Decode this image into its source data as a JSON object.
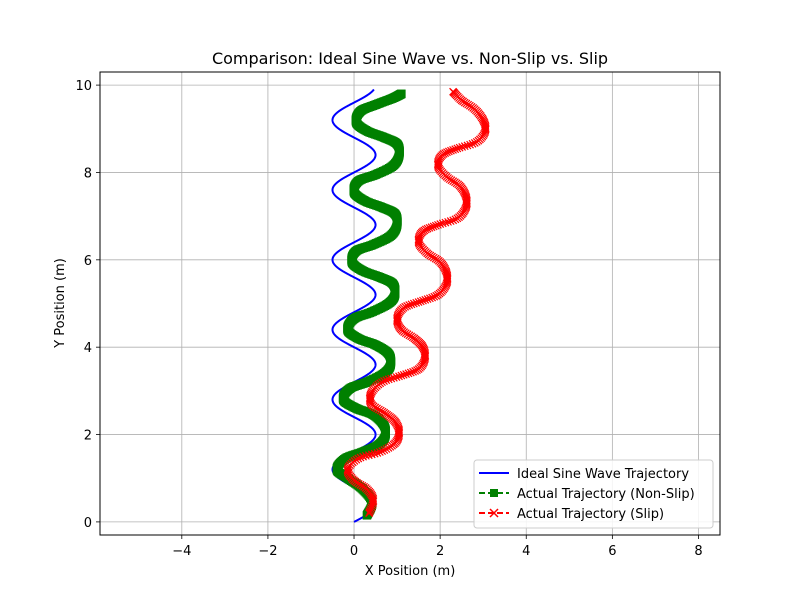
{
  "chart_data": {
    "type": "line",
    "title": "Comparison: Ideal Sine Wave vs. Non-Slip vs. Slip",
    "xlabel": "X Position (m)",
    "ylabel": "Y Position (m)",
    "xlim": [
      -5.9,
      8.5
    ],
    "ylim": [
      -0.3,
      10.3
    ],
    "xticks": [
      -4,
      -2,
      0,
      2,
      4,
      6,
      8
    ],
    "yticks": [
      0,
      2,
      4,
      6,
      8,
      10
    ],
    "grid": true,
    "legend_position": "lower-right",
    "series": [
      {
        "name": "Ideal Sine Wave Trajectory",
        "color": "#0000ff",
        "style": "solid",
        "marker": "none",
        "curve": {
          "center_x": 0.0,
          "amplitude": 0.5,
          "period_y": 1.6,
          "y_start": 0.0,
          "y_end": 9.9
        }
      },
      {
        "name": "Actual Trajectory (Non-Slip)",
        "color": "#008000",
        "style": "dashed",
        "marker": "square",
        "points": [
          [
            0.3,
            0.15
          ],
          [
            0.42,
            0.45
          ],
          [
            0.2,
            0.75
          ],
          [
            -0.15,
            1.0
          ],
          [
            -0.4,
            1.2
          ],
          [
            -0.2,
            1.45
          ],
          [
            0.2,
            1.6
          ],
          [
            0.55,
            1.75
          ],
          [
            0.72,
            1.95
          ],
          [
            0.7,
            2.2
          ],
          [
            0.45,
            2.45
          ],
          [
            0.05,
            2.6
          ],
          [
            -0.25,
            2.8
          ],
          [
            -0.1,
            3.05
          ],
          [
            0.3,
            3.2
          ],
          [
            0.7,
            3.4
          ],
          [
            0.85,
            3.6
          ],
          [
            0.8,
            3.85
          ],
          [
            0.5,
            4.05
          ],
          [
            0.1,
            4.2
          ],
          [
            -0.15,
            4.4
          ],
          [
            0.0,
            4.65
          ],
          [
            0.4,
            4.8
          ],
          [
            0.8,
            5.0
          ],
          [
            0.95,
            5.2
          ],
          [
            0.9,
            5.45
          ],
          [
            0.6,
            5.6
          ],
          [
            0.2,
            5.75
          ],
          [
            -0.05,
            5.95
          ],
          [
            0.05,
            6.2
          ],
          [
            0.45,
            6.35
          ],
          [
            0.85,
            6.55
          ],
          [
            1.0,
            6.8
          ],
          [
            0.95,
            7.05
          ],
          [
            0.65,
            7.2
          ],
          [
            0.25,
            7.35
          ],
          [
            0.0,
            7.55
          ],
          [
            0.1,
            7.8
          ],
          [
            0.5,
            7.95
          ],
          [
            0.9,
            8.15
          ],
          [
            1.05,
            8.4
          ],
          [
            1.0,
            8.65
          ],
          [
            0.7,
            8.8
          ],
          [
            0.3,
            8.95
          ],
          [
            0.05,
            9.15
          ],
          [
            0.15,
            9.4
          ],
          [
            0.5,
            9.55
          ],
          [
            0.9,
            9.7
          ],
          [
            1.1,
            9.8
          ]
        ]
      },
      {
        "name": "Actual Trajectory (Slip)",
        "color": "#ff0000",
        "style": "dashed",
        "marker": "x",
        "points": [
          [
            0.35,
            0.2
          ],
          [
            0.45,
            0.5
          ],
          [
            0.3,
            0.75
          ],
          [
            0.0,
            0.95
          ],
          [
            -0.15,
            1.2
          ],
          [
            0.1,
            1.45
          ],
          [
            0.6,
            1.6
          ],
          [
            0.95,
            1.8
          ],
          [
            1.05,
            2.05
          ],
          [
            0.95,
            2.3
          ],
          [
            0.7,
            2.5
          ],
          [
            0.4,
            2.7
          ],
          [
            0.4,
            2.95
          ],
          [
            0.65,
            3.2
          ],
          [
            1.1,
            3.35
          ],
          [
            1.5,
            3.5
          ],
          [
            1.65,
            3.75
          ],
          [
            1.6,
            4.0
          ],
          [
            1.4,
            4.2
          ],
          [
            1.1,
            4.4
          ],
          [
            1.0,
            4.65
          ],
          [
            1.15,
            4.9
          ],
          [
            1.55,
            5.05
          ],
          [
            1.95,
            5.2
          ],
          [
            2.15,
            5.45
          ],
          [
            2.15,
            5.7
          ],
          [
            2.0,
            5.95
          ],
          [
            1.7,
            6.15
          ],
          [
            1.5,
            6.4
          ],
          [
            1.6,
            6.65
          ],
          [
            1.95,
            6.8
          ],
          [
            2.4,
            6.95
          ],
          [
            2.6,
            7.2
          ],
          [
            2.6,
            7.45
          ],
          [
            2.45,
            7.7
          ],
          [
            2.15,
            7.9
          ],
          [
            1.95,
            8.15
          ],
          [
            2.05,
            8.4
          ],
          [
            2.4,
            8.55
          ],
          [
            2.85,
            8.7
          ],
          [
            3.05,
            8.95
          ],
          [
            3.0,
            9.2
          ],
          [
            2.8,
            9.45
          ],
          [
            2.5,
            9.65
          ],
          [
            2.3,
            9.85
          ]
        ]
      }
    ]
  }
}
